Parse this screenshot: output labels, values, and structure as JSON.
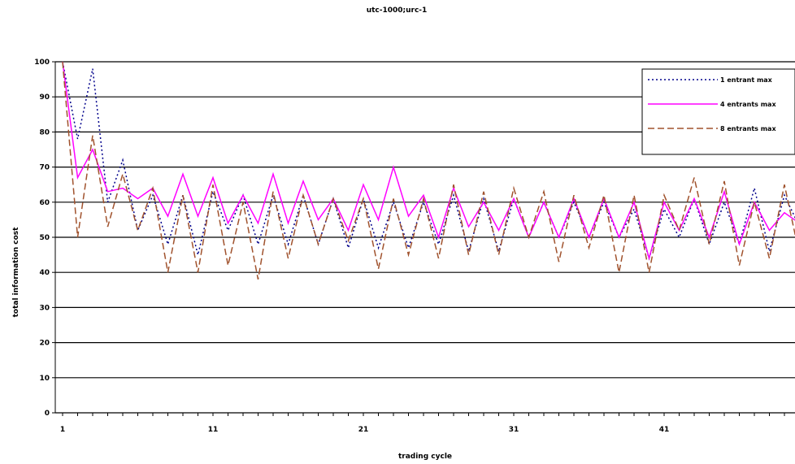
{
  "chart_data": {
    "type": "line",
    "title": "utc-1000;urc-1",
    "xlabel": "trading cycle",
    "ylabel": "total information cost",
    "ylim": [
      0,
      100
    ],
    "xlim": [
      1,
      50
    ],
    "y_ticks": [
      "0",
      "10",
      "20",
      "30",
      "40",
      "50",
      "60",
      "70",
      "80",
      "90",
      "100"
    ],
    "x_ticks": [
      "1",
      "11",
      "21",
      "31",
      "41"
    ],
    "grid": true,
    "legend_position": "top-right",
    "x": [
      1,
      2,
      3,
      4,
      5,
      6,
      7,
      8,
      9,
      10,
      11,
      12,
      13,
      14,
      15,
      16,
      17,
      18,
      19,
      20,
      21,
      22,
      23,
      24,
      25,
      26,
      27,
      28,
      29,
      30,
      31,
      32,
      33,
      34,
      35,
      36,
      37,
      38,
      39,
      40,
      41,
      42,
      43,
      44,
      45,
      46,
      47,
      48,
      49,
      50
    ],
    "series": [
      {
        "name": "1 entrant max",
        "color": "#00008B",
        "dash": "dotted",
        "values": [
          100,
          78,
          98,
          60,
          72,
          52,
          62,
          48,
          62,
          45,
          63,
          52,
          62,
          48,
          62,
          48,
          62,
          48,
          61,
          47,
          61,
          47,
          60,
          47,
          60,
          48,
          62,
          46,
          61,
          46,
          61,
          50,
          60,
          50,
          60,
          50,
          60,
          50,
          58,
          44,
          58,
          50,
          61,
          48,
          60,
          48,
          64,
          46,
          62,
          53
        ]
      },
      {
        "name": "4 entrants max",
        "color": "#FF00FF",
        "dash": "solid",
        "values": [
          100,
          67,
          75,
          63,
          64,
          61,
          64,
          56,
          68,
          56,
          67,
          54,
          62,
          54,
          68,
          54,
          66,
          55,
          61,
          52,
          65,
          55,
          70,
          56,
          62,
          50,
          64,
          53,
          60,
          52,
          61,
          50,
          60,
          50,
          61,
          50,
          61,
          50,
          60,
          44,
          60,
          52,
          61,
          50,
          63,
          48,
          60,
          52,
          57,
          54
        ]
      },
      {
        "name": "8 entrants max",
        "color": "#A0522D",
        "dash": "dashed",
        "values": [
          100,
          50,
          79,
          53,
          68,
          52,
          64,
          40,
          62,
          40,
          65,
          42,
          60,
          38,
          63,
          44,
          62,
          48,
          61,
          49,
          61,
          41,
          61,
          45,
          61,
          44,
          65,
          45,
          63,
          45,
          64,
          50,
          63,
          43,
          62,
          47,
          62,
          40,
          62,
          40,
          62,
          52,
          67,
          48,
          66,
          42,
          60,
          44,
          65,
          45
        ]
      }
    ]
  }
}
